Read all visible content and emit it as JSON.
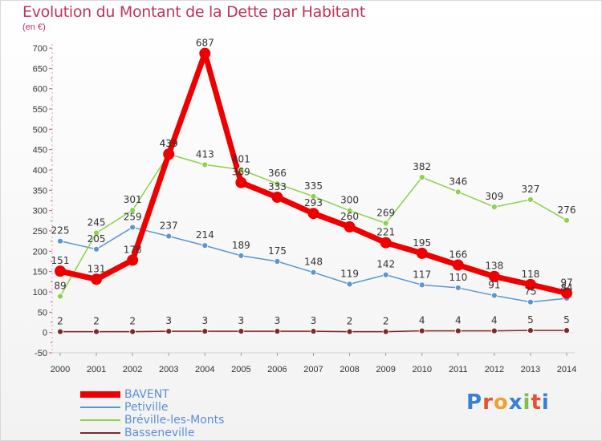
{
  "header": {
    "title": "Evolution du Montant de la Dette par Habitant",
    "unit": "(en €)"
  },
  "logo": {
    "text": "Proxiti",
    "colors": [
      "#3a7fd5",
      "#e8502f",
      "#f0a030",
      "#3a7fd5",
      "#7cc04a",
      "#e8502f",
      "#3a7fd5"
    ]
  },
  "chart_data": {
    "type": "line",
    "title": "Evolution du Montant de la Dette par Habitant",
    "ylabel": "(en €)",
    "xlabel": "",
    "x": [
      "2000",
      "2001",
      "2002",
      "2003",
      "2004",
      "2005",
      "2006",
      "2007",
      "2008",
      "2009",
      "2010",
      "2011",
      "2012",
      "2013",
      "2014"
    ],
    "ylim": [
      -50,
      700
    ],
    "yticks": [
      -50,
      0,
      50,
      100,
      150,
      200,
      250,
      300,
      350,
      400,
      450,
      500,
      550,
      600,
      650,
      700
    ],
    "grid": false,
    "legend_position": "bottom-left",
    "series": [
      {
        "name": "BAVENT",
        "color": "#ee0000",
        "values": [
          151,
          131,
          178,
          439,
          687,
          369,
          333,
          293,
          260,
          221,
          195,
          166,
          138,
          118,
          97
        ],
        "labels": [
          "151",
          "131",
          "178",
          "439",
          "687",
          "369",
          "333",
          "293",
          "260",
          "221",
          "195",
          "166",
          "138",
          "118",
          "97"
        ]
      },
      {
        "name": "Petiville",
        "color": "#5b96d0",
        "values": [
          225,
          205,
          259,
          237,
          214,
          189,
          175,
          148,
          119,
          142,
          117,
          110,
          91,
          75,
          84
        ],
        "labels": [
          "225",
          "205",
          "259",
          "237",
          "214",
          "189",
          "175",
          "148",
          "119",
          "142",
          "117",
          "110",
          "91",
          "75",
          "84"
        ]
      },
      {
        "name": "Bréville-les-Monts",
        "color": "#8dd14c",
        "values": [
          89,
          245,
          301,
          439,
          413,
          401,
          366,
          335,
          300,
          269,
          382,
          346,
          309,
          327,
          276
        ],
        "labels": [
          "89",
          "245",
          "301",
          "439",
          "413",
          "401",
          "366",
          "335",
          "300",
          "269",
          "382",
          "346",
          "309",
          "327",
          "276"
        ]
      },
      {
        "name": "Basseneville",
        "color": "#7a2a2a",
        "values": [
          2,
          2,
          2,
          3,
          3,
          3,
          3,
          3,
          2,
          2,
          4,
          4,
          4,
          5,
          5
        ],
        "labels": [
          "2",
          "2",
          "2",
          "3",
          "3",
          "3",
          "3",
          "3",
          "2",
          "2",
          "4",
          "4",
          "4",
          "5",
          "5"
        ]
      }
    ]
  }
}
